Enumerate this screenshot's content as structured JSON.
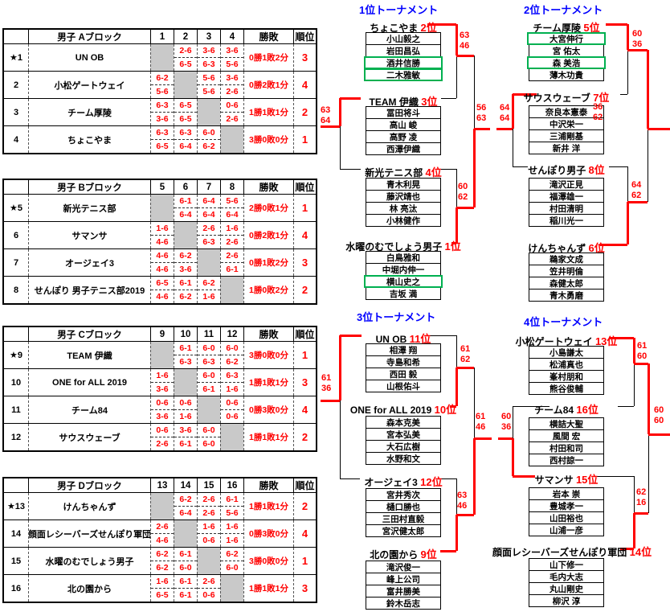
{
  "colors": {
    "accent_red": "#ff0000",
    "title_blue": "#0000ff",
    "green_highlight": "#00b050",
    "gray_cell": "#c9c9c9"
  },
  "headers": {
    "wl": "勝敗",
    "rank": "順位"
  },
  "blocks": [
    {
      "title": "男子 Aブロック",
      "col_headers": [
        "1",
        "2",
        "3",
        "4"
      ],
      "rows": [
        {
          "seed": "★1",
          "name": "UN OB",
          "cells": [
            null,
            "2-6|6-5",
            "3-6|6-3",
            "3-6|5-6"
          ],
          "record": "0勝1敗2分",
          "rank": "3"
        },
        {
          "seed": "2",
          "name": "小松ゲートウェイ",
          "cells": [
            "6-2|5-6",
            null,
            "5-6|5-6",
            "3-6|2-6"
          ],
          "record": "0勝2敗1分",
          "rank": "4"
        },
        {
          "seed": "3",
          "name": "チーム厚陵",
          "cells": [
            "6-3|3-6",
            "6-5|6-5",
            null,
            "0-6|2-6"
          ],
          "record": "1勝1敗1分",
          "rank": "2"
        },
        {
          "seed": "4",
          "name": "ちょこやま",
          "cells": [
            "6-3|6-5",
            "6-3|6-4",
            "6-0|6-2",
            null
          ],
          "record": "3勝0敗0分",
          "rank": "1"
        }
      ]
    },
    {
      "title": "男子 Bブロック",
      "col_headers": [
        "5",
        "6",
        "7",
        "8"
      ],
      "rows": [
        {
          "seed": "★5",
          "name": "新光テニス部",
          "cells": [
            null,
            "6-1|6-4",
            "6-4|6-4",
            "5-6|6-4"
          ],
          "record": "2勝0敗1分",
          "rank": "1"
        },
        {
          "seed": "6",
          "name": "サマンサ",
          "cells": [
            "1-6|4-6",
            null,
            "2-6|6-3",
            "1-6|2-6"
          ],
          "record": "0勝2敗1分",
          "rank": "4"
        },
        {
          "seed": "7",
          "name": "オージェイ3",
          "cells": [
            "4-6|4-6",
            "6-2|3-6",
            null,
            "2-6|6-1"
          ],
          "record": "0勝1敗2分",
          "rank": "3"
        },
        {
          "seed": "8",
          "name": "せんぽり 男子テニス部2019",
          "cells": [
            "6-5|4-6",
            "6-1|6-2",
            "6-2|1-6",
            null
          ],
          "record": "1勝0敗2分",
          "rank": "2"
        }
      ]
    },
    {
      "title": "男子 Cブロック",
      "col_headers": [
        "9",
        "10",
        "11",
        "12"
      ],
      "rows": [
        {
          "seed": "★9",
          "name": "TEAM 伊織",
          "cells": [
            null,
            "6-1|6-3",
            "6-0|6-3",
            "6-0|6-2"
          ],
          "record": "3勝0敗0分",
          "rank": "1"
        },
        {
          "seed": "10",
          "name": "ONE for ALL 2019",
          "cells": [
            "1-6|3-6",
            null,
            "6-0|6-1",
            "6-3|1-6"
          ],
          "record": "1勝1敗1分",
          "rank": "3"
        },
        {
          "seed": "11",
          "name": "チーム84",
          "cells": [
            "0-6|3-6",
            "0-6|1-6",
            null,
            "0-6|0-6"
          ],
          "record": "0勝3敗0分",
          "rank": "4"
        },
        {
          "seed": "12",
          "name": "サウスウェーブ",
          "cells": [
            "0-6|2-6",
            "3-6|6-1",
            "6-0|6-0",
            null
          ],
          "record": "1勝1敗1分",
          "rank": "2"
        }
      ]
    },
    {
      "title": "男子 Dブロック",
      "col_headers": [
        "13",
        "14",
        "15",
        "16"
      ],
      "rows": [
        {
          "seed": "★13",
          "name": "けんちゃんず",
          "cells": [
            null,
            "6-2|6-4",
            "2-6|2-6",
            "6-1|5-6"
          ],
          "record": "1勝1敗1分",
          "rank": "2"
        },
        {
          "seed": "14",
          "name": "顔面レシーバーズせんぽり軍団",
          "cells": [
            "2-6|4-6",
            null,
            "1-6|0-6",
            "1-6|1-6"
          ],
          "record": "0勝3敗0分",
          "rank": "4"
        },
        {
          "seed": "15",
          "name": "水曜のむでしょう男子",
          "cells": [
            "6-2|6-2",
            "6-1|6-0",
            null,
            "6-2|6-0"
          ],
          "record": "3勝0敗0分",
          "rank": "1"
        },
        {
          "seed": "16",
          "name": "北の園から",
          "cells": [
            "1-6|6-5",
            "6-1|6-1",
            "2-6|0-6",
            null
          ],
          "record": "1勝1敗1分",
          "rank": "3"
        }
      ]
    }
  ],
  "tournaments": [
    {
      "title": "1位トーナメント",
      "teams": [
        {
          "name": "ちょこやま",
          "rank": "2位",
          "members": [
            "小山毅之",
            "岩田昌弘",
            "酒井信勝",
            "二木雅敏"
          ],
          "green": [
            2,
            3
          ]
        },
        {
          "name": "TEAM 伊織",
          "rank": "3位",
          "members": [
            "冨田将斗",
            "高山 峻",
            "高野 凌",
            "西澤伊織"
          ],
          "green": []
        },
        {
          "name": "新光テニス部",
          "rank": "4位",
          "members": [
            "青木利晃",
            "藤沢靖也",
            "林 亮汰",
            "小林健作"
          ],
          "green": []
        },
        {
          "name": "水曜のむでしょう男子",
          "rank": "1位",
          "members": [
            "白鳥雅和",
            "中堀内伸一",
            "横山史之",
            "吉坂 満"
          ],
          "green": [
            2
          ]
        }
      ],
      "matches": {
        "sf1": {
          "sets": [
            "63",
            "46"
          ],
          "winner": "top"
        },
        "sf2": {
          "sets": [
            "60",
            "62"
          ],
          "winner": "bottom"
        },
        "final": {
          "sets": [
            "56",
            "63"
          ],
          "winner": "bottom"
        },
        "consolation": {
          "sets": [
            "63",
            "64"
          ],
          "winner": "top"
        }
      }
    },
    {
      "title": "2位トーナメント",
      "teams": [
        {
          "name": "チーム厚陵",
          "rank": "5位",
          "members": [
            "大宮伸行",
            "宮 佑太",
            "森 美浩",
            "薄木功貴"
          ],
          "green": [
            0,
            2
          ]
        },
        {
          "name": "サウスウェーブ",
          "rank": "7位",
          "members": [
            "奈良本憲泰",
            "中沢栄一",
            "三浦剛基",
            "新井 洋"
          ],
          "green": []
        },
        {
          "name": "せんぽり男子",
          "rank": "8位",
          "members": [
            "滝沢正見",
            "福澤雄一",
            "村田清明",
            "稲川光一"
          ],
          "green": []
        },
        {
          "name": "けんちゃんず",
          "rank": "6位",
          "members": [
            "鵜家文成",
            "笠井明倫",
            "森健太郎",
            "青木勇磨"
          ],
          "green": []
        }
      ],
      "matches": {
        "sf1": {
          "sets": [
            "60",
            "36"
          ],
          "winner": "top"
        },
        "sf2": {
          "sets": [
            "64",
            "62"
          ],
          "winner": "bottom"
        },
        "final": {
          "sets": [
            "36",
            "62"
          ],
          "winner": "top"
        },
        "consolation": {
          "sets": [
            "64",
            "64"
          ],
          "winner": "top"
        }
      }
    },
    {
      "title": "3位トーナメント",
      "teams": [
        {
          "name": "UN OB",
          "rank": "11位",
          "members": [
            "相澤 翔",
            "寺島和希",
            "西田 毅",
            "山根佑斗"
          ],
          "green": []
        },
        {
          "name": "ONE for ALL 2019",
          "rank": "10位",
          "members": [
            "森本克美",
            "宮本弘美",
            "大石広樹",
            "水野和文"
          ],
          "green": []
        },
        {
          "name": "オージェイ3",
          "rank": "12位",
          "members": [
            "宮井秀次",
            "樋口勝也",
            "三田村直毅",
            "宮沢健太郎"
          ],
          "green": []
        },
        {
          "name": "北の園から",
          "rank": "9位",
          "members": [
            "滝沢俊一",
            "峰上公司",
            "富井勝美",
            "鈴木岳志"
          ],
          "green": []
        }
      ],
      "matches": {
        "sf1": {
          "sets": [
            "61",
            "62"
          ],
          "winner": "bottom"
        },
        "sf2": {
          "sets": [
            "63",
            "46"
          ],
          "winner": "bottom"
        },
        "final": {
          "sets": [
            "61",
            "46"
          ],
          "winner": "bottom"
        },
        "consolation": {
          "sets": [
            "61",
            "36"
          ],
          "winner": "top"
        }
      }
    },
    {
      "title": "4位トーナメント",
      "teams": [
        {
          "name": "小松ゲートウェイ",
          "rank": "13位",
          "members": [
            "小島謙太",
            "松浦真也",
            "峯村朋和",
            "熊谷俊輔"
          ],
          "green": []
        },
        {
          "name": "チーム84",
          "rank": "16位",
          "members": [
            "横詰大聖",
            "風間 宏",
            "村田和司",
            "西村諒一"
          ],
          "green": []
        },
        {
          "name": "サマンサ",
          "rank": "15位",
          "members": [
            "岩本 崇",
            "豊城孝一",
            "山田裕也",
            "山浦一彦"
          ],
          "green": []
        },
        {
          "name": "顔面レシーバーズせんぽり軍団",
          "rank": "14位",
          "members": [
            "山下修一",
            "毛内大志",
            "丸山剛史",
            "柳沢 淳"
          ],
          "green": []
        }
      ],
      "matches": {
        "sf1": {
          "sets": [
            "61",
            "60"
          ],
          "winner": "top"
        },
        "sf2": {
          "sets": [
            "62",
            "16"
          ],
          "winner": "bottom"
        },
        "final": {
          "sets": [
            "60",
            "60"
          ],
          "winner": "top"
        },
        "consolation": {
          "sets": [
            "60",
            "36"
          ],
          "winner": "bottom"
        }
      }
    }
  ]
}
